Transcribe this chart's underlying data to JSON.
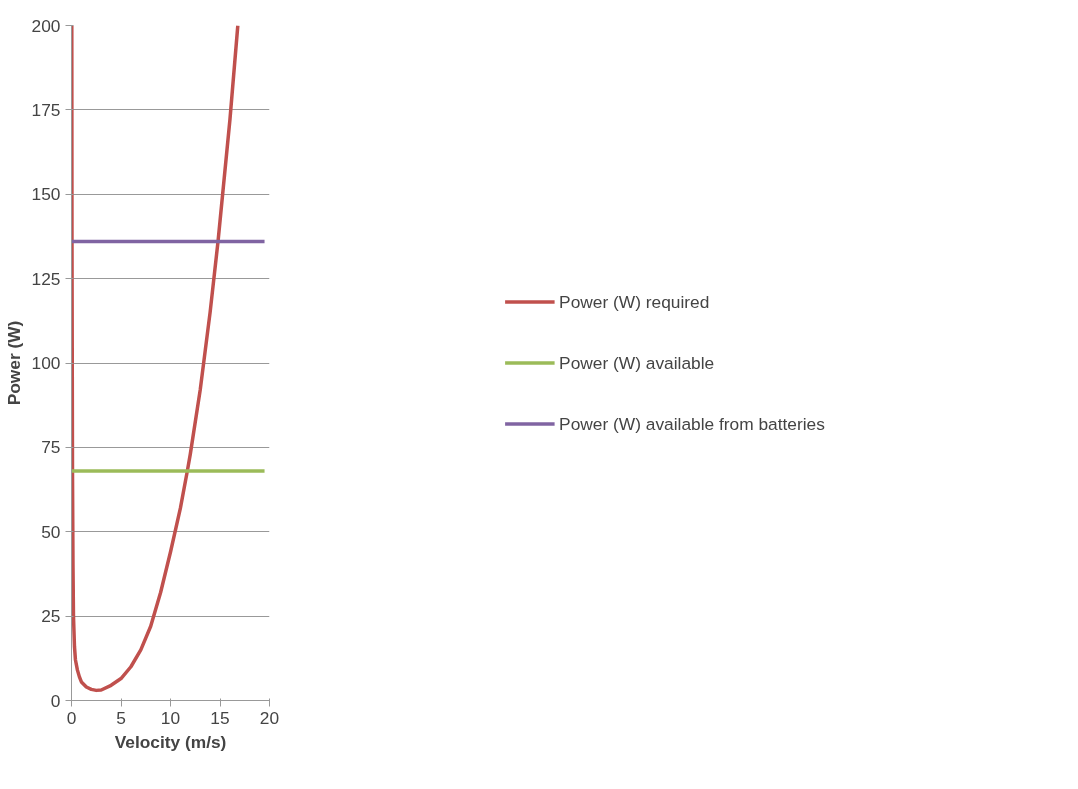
{
  "chart_data": {
    "type": "line",
    "xlabel": "Velocity (m/s)",
    "ylabel": "Power (W)",
    "xlim": [
      0,
      20
    ],
    "ylim": [
      0,
      200
    ],
    "xticks": [
      0,
      5,
      10,
      15,
      20
    ],
    "yticks": [
      0,
      25,
      50,
      75,
      100,
      125,
      150,
      175,
      200
    ],
    "grid": "y",
    "legend": "right",
    "marker": "none",
    "line_style": "solid",
    "series": [
      {
        "name": "Power (W) required",
        "color": "#c0504d",
        "x": [
          0.03,
          0.05,
          0.1,
          0.15,
          0.2,
          0.3,
          0.4,
          0.6,
          0.8,
          1,
          1.5,
          2,
          2.5,
          3,
          4,
          5,
          6,
          7,
          8,
          9,
          10,
          11,
          11.7,
          12,
          13,
          14,
          14.8,
          15,
          16,
          16.8
        ],
        "values": [
          200,
          136,
          68,
          40,
          25,
          16,
          12,
          9,
          7,
          5.5,
          4,
          3.3,
          3,
          3.1,
          4.5,
          6.5,
          10,
          15,
          22,
          32,
          44,
          57,
          68,
          73,
          92,
          115,
          136,
          142,
          172,
          200
        ]
      },
      {
        "name": "Power (W) available",
        "color": "#9bbb59",
        "x": [
          0,
          19.5
        ],
        "values": [
          68,
          68
        ]
      },
      {
        "name": "Power (W) available from batteries",
        "color": "#8064a2",
        "x": [
          0,
          19.5
        ],
        "values": [
          136,
          136
        ]
      }
    ]
  }
}
